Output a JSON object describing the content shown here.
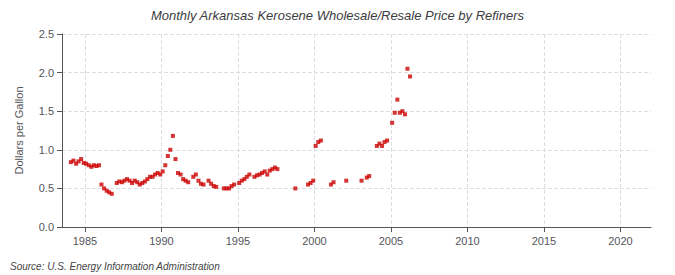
{
  "chart_data": {
    "type": "scatter",
    "title": "Monthly Arkansas Kerosene Wholesale/Resale Price by Refiners",
    "ylabel": "Dollars per Gallon",
    "annotations": [
      "Source: U.S. Energy Information Administration"
    ],
    "color": "#cc0000",
    "marker": "square",
    "grid": true,
    "xlim": [
      1983.5,
      2022
    ],
    "ylim": [
      0.0,
      2.5
    ],
    "xticks": [
      1985,
      1990,
      1995,
      2000,
      2005,
      2010,
      2015,
      2020
    ],
    "yticks": [
      {
        "value": 0.0,
        "label": "0.0"
      },
      0.5,
      {
        "value": 1.0,
        "label": "1.0"
      },
      1.5,
      {
        "value": 2.0,
        "label": "2.0"
      },
      2.5
    ],
    "x": [
      1984.08,
      1984.25,
      1984.42,
      1984.58,
      1984.75,
      1984.92,
      1985.08,
      1985.25,
      1985.42,
      1985.58,
      1985.75,
      1985.92,
      1986.08,
      1986.25,
      1986.42,
      1986.58,
      1986.75,
      1987.08,
      1987.25,
      1987.42,
      1987.58,
      1987.75,
      1987.92,
      1988.08,
      1988.25,
      1988.42,
      1988.58,
      1988.75,
      1988.92,
      1989.08,
      1989.25,
      1989.42,
      1989.58,
      1989.75,
      1989.92,
      1990.08,
      1990.25,
      1990.42,
      1990.58,
      1990.75,
      1990.92,
      1991.08,
      1991.25,
      1991.42,
      1991.58,
      1991.75,
      1992.08,
      1992.25,
      1992.42,
      1992.58,
      1992.75,
      1993.08,
      1993.25,
      1993.42,
      1993.58,
      1994.08,
      1994.25,
      1994.42,
      1994.58,
      1994.75,
      1995.08,
      1995.25,
      1995.42,
      1995.58,
      1995.75,
      1996.08,
      1996.25,
      1996.42,
      1996.58,
      1996.75,
      1996.92,
      1997.08,
      1997.25,
      1997.42,
      1997.58,
      1998.75,
      1999.58,
      1999.75,
      1999.92,
      2000.08,
      2000.25,
      2000.42,
      2001.08,
      2001.25,
      2002.08,
      2003.08,
      2003.42,
      2003.58,
      2004.08,
      2004.25,
      2004.42,
      2004.58,
      2004.75,
      2005.08,
      2005.25,
      2005.42,
      2005.58,
      2005.75,
      2005.92,
      2006.08,
      2006.25
    ],
    "values": [
      0.84,
      0.86,
      0.82,
      0.85,
      0.88,
      0.83,
      0.82,
      0.8,
      0.78,
      0.8,
      0.79,
      0.8,
      0.55,
      0.5,
      0.47,
      0.45,
      0.43,
      0.57,
      0.59,
      0.58,
      0.6,
      0.62,
      0.6,
      0.57,
      0.6,
      0.58,
      0.55,
      0.57,
      0.59,
      0.62,
      0.65,
      0.65,
      0.68,
      0.7,
      0.68,
      0.72,
      0.8,
      0.92,
      1.0,
      1.18,
      0.88,
      0.7,
      0.68,
      0.62,
      0.6,
      0.58,
      0.65,
      0.68,
      0.6,
      0.56,
      0.55,
      0.6,
      0.56,
      0.53,
      0.52,
      0.5,
      0.5,
      0.5,
      0.53,
      0.55,
      0.57,
      0.6,
      0.62,
      0.65,
      0.68,
      0.65,
      0.67,
      0.68,
      0.7,
      0.72,
      0.68,
      0.73,
      0.75,
      0.77,
      0.75,
      0.5,
      0.55,
      0.57,
      0.6,
      1.05,
      1.1,
      1.12,
      0.55,
      0.58,
      0.6,
      0.6,
      0.64,
      0.66,
      1.05,
      1.08,
      1.05,
      1.1,
      1.12,
      1.35,
      1.48,
      1.65,
      1.48,
      1.5,
      1.46,
      2.05,
      1.95
    ]
  }
}
